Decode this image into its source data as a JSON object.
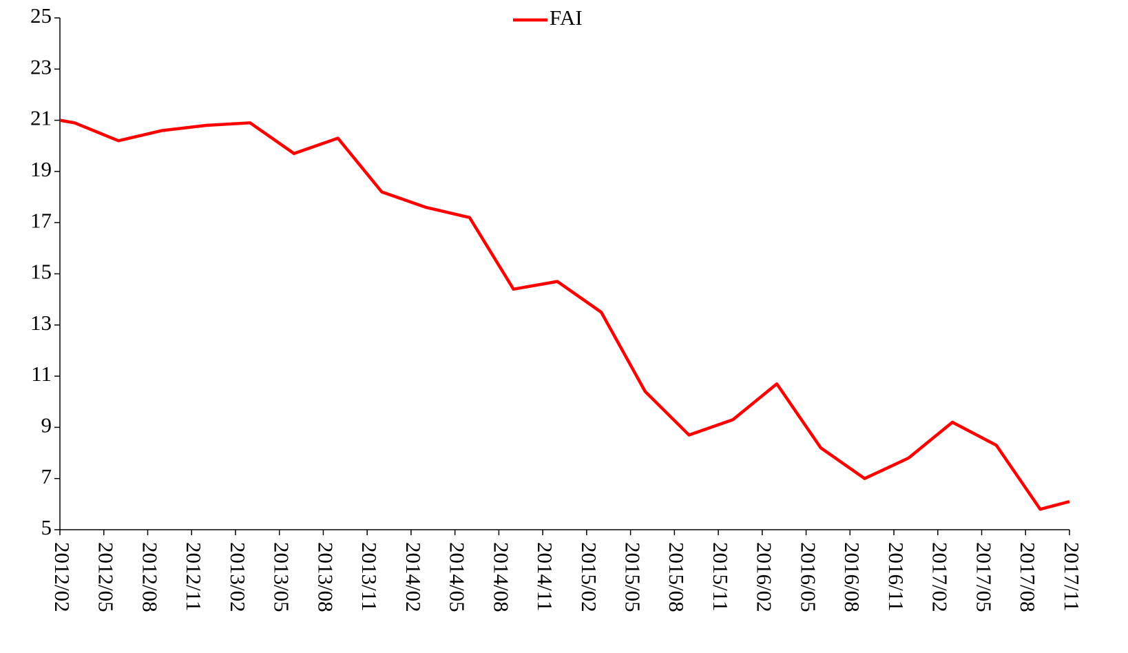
{
  "chart_data": {
    "type": "line",
    "x": [
      "2012/02",
      "2012/03",
      "2012/06",
      "2012/09",
      "2012/12",
      "2013/03",
      "2013/06",
      "2013/09",
      "2013/12",
      "2014/03",
      "2014/06",
      "2014/09",
      "2014/12",
      "2015/03",
      "2015/06",
      "2015/09",
      "2015/12",
      "2016/03",
      "2016/06",
      "2016/09",
      "2016/12",
      "2017/03",
      "2017/06",
      "2017/09",
      "2017/11"
    ],
    "series": [
      {
        "name": "FAI",
        "color": "#ff0000",
        "values": [
          21.0,
          20.9,
          20.2,
          20.6,
          20.8,
          20.9,
          19.7,
          20.3,
          18.2,
          17.6,
          17.2,
          14.4,
          14.7,
          13.5,
          10.4,
          8.7,
          9.3,
          10.7,
          8.2,
          7.0,
          7.8,
          9.2,
          8.3,
          5.8,
          6.1
        ]
      }
    ],
    "xlim": [
      "2012/02",
      "2017/11"
    ],
    "xticks": [
      "2012/02",
      "2012/05",
      "2012/08",
      "2012/11",
      "2013/02",
      "2013/05",
      "2013/08",
      "2013/11",
      "2014/02",
      "2014/05",
      "2014/08",
      "2014/11",
      "2015/02",
      "2015/05",
      "2015/08",
      "2015/11",
      "2016/02",
      "2016/05",
      "2016/08",
      "2016/11",
      "2017/02",
      "2017/05",
      "2017/08",
      "2017/11"
    ],
    "ylim": [
      5,
      25
    ],
    "yticks": [
      5,
      7,
      9,
      11,
      13,
      15,
      17,
      19,
      21,
      23,
      25
    ],
    "legend": "top"
  }
}
